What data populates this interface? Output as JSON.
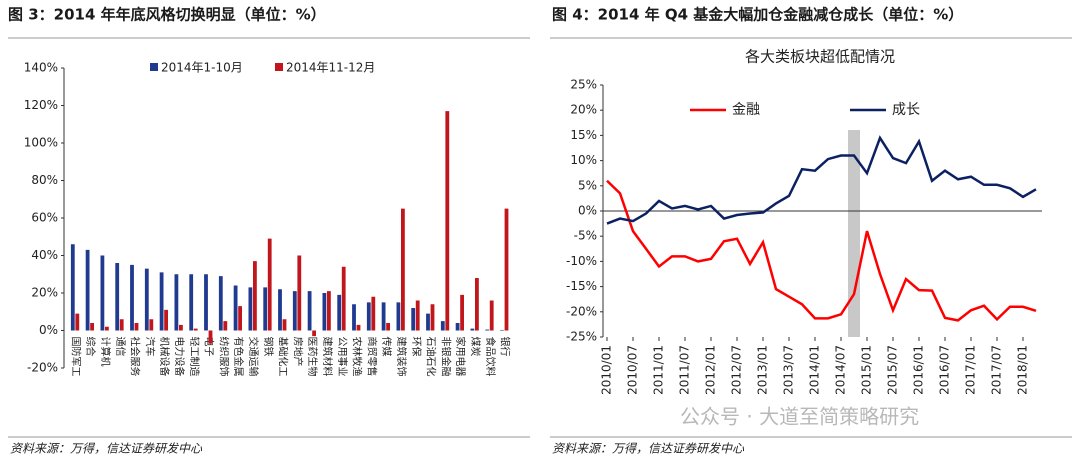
{
  "header_left": "图 3：2014 年年底风格切换明显（单位：%）",
  "header_right": "图 4：2014 年 Q4 基金大幅加仓金融减仓成长（单位：%）",
  "source_left": "资料来源：万得，信达证券研发中心",
  "source_right": "资料来源：万得，信达证券研发中心",
  "watermark": "公众号 · 大道至简策略研究",
  "chart_data": [
    {
      "type": "bar",
      "categories": [
        "国防军工",
        "综合",
        "计算机",
        "通信",
        "社会服务",
        "汽车",
        "机械设备",
        "电力设备",
        "轻工制造",
        "电子",
        "纺织服饰",
        "有色金属",
        "交通运输",
        "钢铁",
        "基础化工",
        "房地产",
        "医药生物",
        "建筑材料",
        "公用事业",
        "农林牧渔",
        "商贸零售",
        "传媒",
        "建筑装饰",
        "环保",
        "石油石化",
        "非银金融",
        "家用电器",
        "煤炭",
        "食品饮料",
        "银行"
      ],
      "series": [
        {
          "name": "2014年1-10月",
          "color": "#1f3a8f",
          "values": [
            46,
            43,
            40,
            36,
            35,
            33,
            31,
            30,
            30,
            30,
            29,
            24,
            23,
            23,
            22,
            21,
            21,
            20,
            19,
            14,
            15,
            15,
            15,
            12,
            9,
            5,
            4,
            1,
            0.5,
            0.3
          ]
        },
        {
          "name": "2014年11-12月",
          "color": "#c0161c",
          "values": [
            9,
            4,
            2,
            6,
            4,
            6,
            11,
            3,
            1,
            -7,
            5,
            13,
            37,
            49,
            6,
            40,
            -3,
            21,
            34,
            3,
            18,
            4,
            65,
            16,
            14,
            117,
            19,
            28,
            16,
            65
          ]
        }
      ],
      "ylim": [
        -20,
        140
      ],
      "yticks": [
        {
          "value": -20,
          "label": "-20%"
        },
        {
          "value": 0,
          "label": "0%"
        },
        {
          "value": 20,
          "label": "20%"
        },
        {
          "value": 40,
          "label": "40%"
        },
        {
          "value": 60,
          "label": "60%"
        },
        {
          "value": 80,
          "label": "80%"
        },
        {
          "value": 100,
          "label": "100%"
        },
        {
          "value": 120,
          "label": "120%"
        },
        {
          "value": 140,
          "label": "140%"
        }
      ],
      "legend": "top"
    },
    {
      "type": "line",
      "title": "各大类板块超低配情况",
      "categories": [
        "2010/01",
        null,
        "2010/07",
        null,
        "2011/01",
        null,
        "2011/07",
        null,
        "2012/01",
        null,
        "2012/07",
        null,
        "2013/01",
        null,
        "2013/07",
        null,
        "2014/01",
        null,
        "2014/07",
        null,
        "2015/01",
        null,
        "2015/07",
        null,
        "2016/01",
        null,
        "2016/07",
        null,
        "2017/01",
        null,
        "2017/07",
        null,
        "2018/01",
        null
      ],
      "series": [
        {
          "name": "金融",
          "color": "#ff0000",
          "values": [
            6,
            3.5,
            -4,
            -7.5,
            -11,
            -9,
            -9,
            -10,
            -9.5,
            -6,
            -5.5,
            -10.5,
            -6.2,
            -15.5,
            -17,
            -18.5,
            -21.3,
            -21.3,
            -20.5,
            -16.5,
            -4,
            -12.5,
            -19.7,
            -13.5,
            -15.7,
            -15.8,
            -21.2,
            -21.7,
            -19.7,
            -18.8,
            -21.5,
            -19,
            -19,
            -19.8
          ]
        },
        {
          "name": "成长",
          "color": "#0c2163",
          "values": [
            -2.5,
            -1.5,
            -2,
            -0.5,
            2,
            0.5,
            1,
            0.3,
            1,
            -1.5,
            -0.8,
            -0.5,
            -0.3,
            1.5,
            3,
            8.3,
            8,
            10.3,
            11,
            11,
            7.5,
            14.5,
            10.5,
            9.5,
            13.8,
            6,
            8,
            6.3,
            6.8,
            5.2,
            5.2,
            4.5,
            2.8,
            4.3
          ]
        }
      ],
      "highlight_index": 19,
      "ylim": [
        -25,
        25
      ],
      "yticks": [
        {
          "value": -25,
          "label": "-25%"
        },
        {
          "value": -20,
          "label": "-20%"
        },
        {
          "value": -15,
          "label": "-15%"
        },
        {
          "value": -10,
          "label": "-10%"
        },
        {
          "value": -5,
          "label": "-5%"
        },
        {
          "value": 0,
          "label": "0%"
        },
        {
          "value": 5,
          "label": "5%"
        },
        {
          "value": 10,
          "label": "10%"
        },
        {
          "value": 15,
          "label": "15%"
        },
        {
          "value": 20,
          "label": "20%"
        },
        {
          "value": 25,
          "label": "25%"
        }
      ]
    }
  ]
}
